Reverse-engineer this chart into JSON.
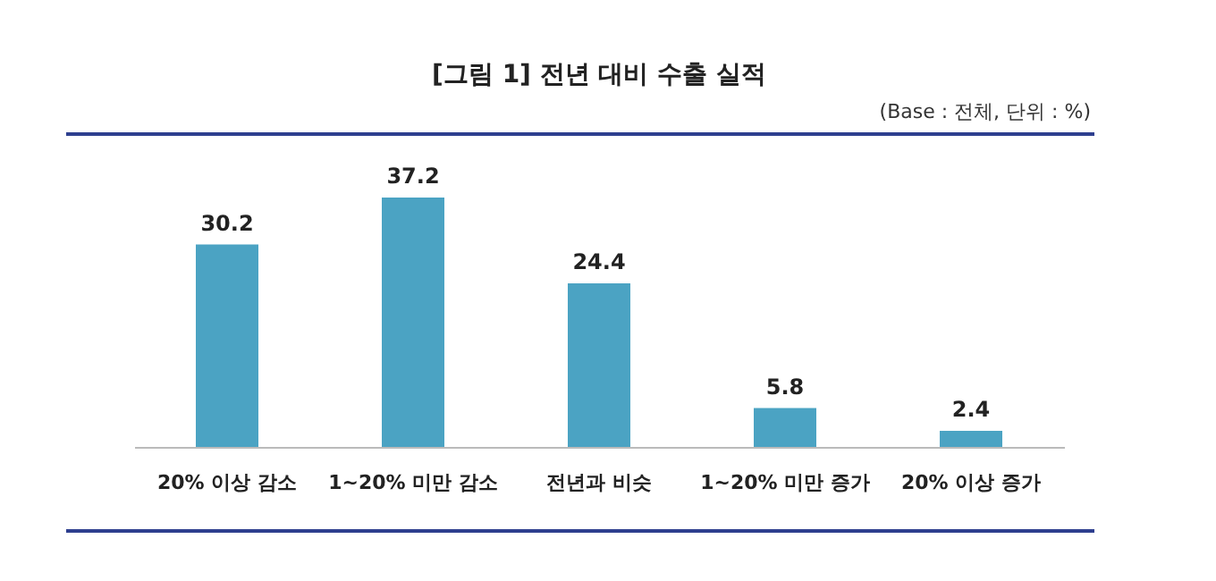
{
  "chart_data": {
    "type": "bar",
    "title": "[그림 1] 전년 대비 수출 실적",
    "annotations": [
      "(Base : 전체, 단위 : %)"
    ],
    "categories": [
      "20% 이상 감소",
      "1~20% 미만 감소",
      "전년과 비슷",
      "1~20% 미만 증가",
      "20% 이상 증가"
    ],
    "values": [
      30.2,
      37.2,
      24.4,
      5.8,
      2.4
    ],
    "color": "#4ba3c3",
    "data_labels": true
  }
}
